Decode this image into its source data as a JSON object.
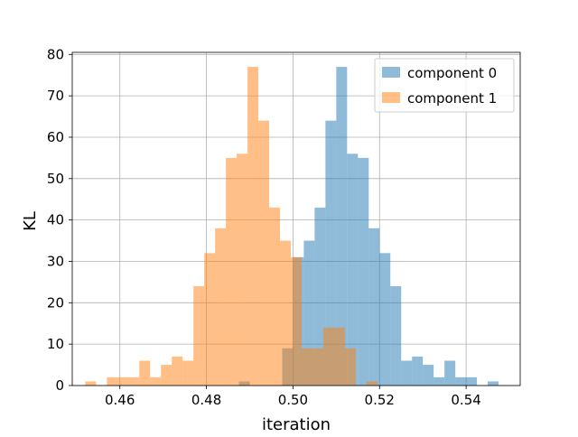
{
  "chart_data": {
    "type": "histogram",
    "xlabel": "iteration",
    "ylabel": "KL",
    "xlim": [
      0.449,
      0.5525
    ],
    "ylim": [
      0,
      80.5
    ],
    "xticks": [
      0.46,
      0.48,
      0.5,
      0.52,
      0.54
    ],
    "xtick_labels": [
      "0.46",
      "0.48",
      "0.50",
      "0.52",
      "0.54"
    ],
    "yticks": [
      0,
      10,
      20,
      30,
      40,
      50,
      60,
      70,
      80
    ],
    "ytick_labels": [
      "0",
      "10",
      "20",
      "30",
      "40",
      "50",
      "60",
      "70",
      "80"
    ],
    "grid": true,
    "legend_position": "upper-right",
    "series": [
      {
        "name": "component 0",
        "color": "#1f77b4",
        "alpha": 0.5,
        "bins": [
          [
            0.4875,
            0.49,
            1
          ],
          [
            0.4975,
            0.5,
            9
          ],
          [
            0.5,
            0.5025,
            31
          ],
          [
            0.5025,
            0.505,
            35
          ],
          [
            0.505,
            0.5075,
            43
          ],
          [
            0.5075,
            0.51,
            64
          ],
          [
            0.51,
            0.5125,
            77
          ],
          [
            0.5125,
            0.515,
            56
          ],
          [
            0.515,
            0.5175,
            55
          ],
          [
            0.5175,
            0.52,
            38
          ],
          [
            0.52,
            0.5225,
            32
          ],
          [
            0.5225,
            0.525,
            24
          ],
          [
            0.525,
            0.5275,
            6
          ],
          [
            0.5275,
            0.53,
            7
          ],
          [
            0.53,
            0.5325,
            5
          ],
          [
            0.5325,
            0.535,
            2
          ],
          [
            0.535,
            0.5375,
            6
          ],
          [
            0.5375,
            0.54,
            2
          ],
          [
            0.54,
            0.5425,
            2
          ],
          [
            0.545,
            0.5475,
            1
          ]
        ]
      },
      {
        "name": "component 1",
        "color": "#ff7f0e",
        "alpha": 0.5,
        "bins": [
          [
            0.452,
            0.4545,
            1
          ],
          [
            0.457,
            0.4595,
            2
          ],
          [
            0.4595,
            0.462,
            2
          ],
          [
            0.462,
            0.4645,
            2
          ],
          [
            0.4645,
            0.467,
            6
          ],
          [
            0.467,
            0.4695,
            2
          ],
          [
            0.4695,
            0.472,
            5
          ],
          [
            0.472,
            0.4745,
            7
          ],
          [
            0.4745,
            0.477,
            6
          ],
          [
            0.477,
            0.4795,
            24
          ],
          [
            0.4795,
            0.482,
            32
          ],
          [
            0.482,
            0.4845,
            38
          ],
          [
            0.4845,
            0.487,
            55
          ],
          [
            0.487,
            0.4895,
            56
          ],
          [
            0.4895,
            0.492,
            77
          ],
          [
            0.492,
            0.4945,
            64
          ],
          [
            0.4945,
            0.497,
            43
          ],
          [
            0.497,
            0.4995,
            35
          ],
          [
            0.4995,
            0.502,
            31
          ],
          [
            0.502,
            0.5045,
            9
          ],
          [
            0.5045,
            0.507,
            9
          ],
          [
            0.507,
            0.5095,
            14
          ],
          [
            0.5095,
            0.512,
            14
          ],
          [
            0.512,
            0.5145,
            9
          ],
          [
            0.517,
            0.5195,
            1
          ]
        ]
      }
    ]
  }
}
